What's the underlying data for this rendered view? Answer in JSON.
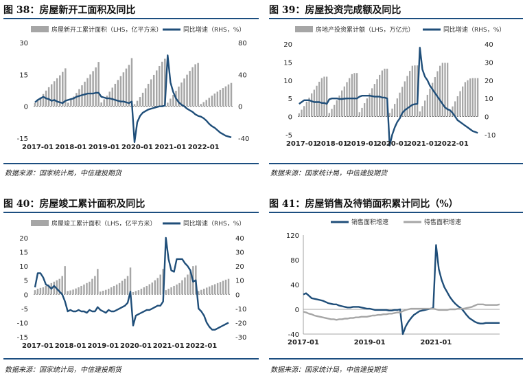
{
  "source_note": "数据来源：国家统计局，中信建投期货",
  "charts": [
    {
      "id": "fig38",
      "title": "图 38：房屋新开工面积及同比",
      "chart_data": {
        "type": "bar+line",
        "legend": [
          "房屋新开工累计面积（LHS，亿平方米）",
          "同比增速（RHS，%）"
        ],
        "x_ticks": [
          "2017-01",
          "2018-01",
          "2019-01",
          "2020-01",
          "2021-01",
          "2022-01"
        ],
        "y_left_ticks": [
          "30",
          "15",
          "0",
          "-15"
        ],
        "y_right_ticks": [
          "80",
          "40",
          "0",
          "-40"
        ],
        "ylim_left": [
          -15,
          30
        ],
        "ylim_right": [
          -40,
          80
        ],
        "bar_series": {
          "name": "房屋新开工累计面积（LHS，亿平方米）",
          "values": [
            1.6,
            2.8,
            4.2,
            5.8,
            7.4,
            9.0,
            10.4,
            11.8,
            13.2,
            14.6,
            16.2,
            17.9,
            1.7,
            3.0,
            4.6,
            6.3,
            8.1,
            9.9,
            11.6,
            13.3,
            15.0,
            16.6,
            18.3,
            20.9,
            1.8,
            3.3,
            5.0,
            6.9,
            8.8,
            10.6,
            12.4,
            14.2,
            16.0,
            17.8,
            19.5,
            22.7,
            1.0,
            2.6,
            4.4,
            6.4,
            8.5,
            10.6,
            12.7,
            14.8,
            16.9,
            19.0,
            21.0,
            22.4,
            1.7,
            3.6,
            5.4,
            7.3,
            9.3,
            11.2,
            13.1,
            14.9,
            16.7,
            18.4,
            19.8,
            20.4,
            1.1,
            2.0,
            3.0,
            4.0,
            5.0,
            6.0,
            6.9,
            7.7,
            8.6,
            9.4,
            10.3,
            11.0
          ],
          "color": "#a6a6a6"
        },
        "line_series": {
          "name": "同比增速（RHS，%）",
          "values": [
            5,
            8,
            10,
            12,
            10,
            9,
            7,
            8,
            6,
            5,
            4,
            7,
            8,
            9,
            10,
            12,
            13,
            14,
            15,
            16,
            16,
            16,
            17,
            17,
            12,
            11,
            10,
            10,
            9,
            8,
            7,
            6,
            6,
            5,
            4,
            6,
            -45,
            -20,
            -12,
            -8,
            -6,
            -4,
            -3,
            -2,
            -1,
            0,
            0,
            1,
            64,
            30,
            18,
            10,
            5,
            2,
            0,
            -3,
            -5,
            -7,
            -10,
            -12,
            -13,
            -15,
            -18,
            -22,
            -25,
            -27,
            -30,
            -33,
            -35,
            -37,
            -38,
            -39
          ],
          "color": "#1f4e79"
        }
      }
    },
    {
      "id": "fig39",
      "title": "图 39：房屋投资完成额及同比",
      "chart_data": {
        "type": "bar+line",
        "legend": [
          "房地产投资累计额（LHS，万亿元）",
          "同比增速（RHS，%）"
        ],
        "x_ticks": [
          "2017-01",
          "2018-01",
          "2019-01",
          "2020-01",
          "2021-01",
          "2022-01"
        ],
        "y_left_ticks": [
          "20",
          "15",
          "10",
          "5",
          "0",
          "-5"
        ],
        "y_right_ticks": [
          "40",
          "30",
          "20",
          "10",
          "0",
          "-10"
        ],
        "ylim_left": [
          -5,
          20
        ],
        "ylim_right": [
          -10,
          40
        ],
        "bar_series": {
          "name": "房地产投资累计额（LHS，万亿元）",
          "values": [
            0.9,
            1.9,
            2.9,
            4.1,
            5.2,
            6.4,
            7.4,
            8.5,
            9.6,
            10.6,
            11.0,
            11.0,
            1.0,
            2.1,
            3.2,
            4.5,
            5.8,
            7.2,
            8.3,
            9.5,
            10.6,
            11.7,
            12.0,
            12.0,
            1.2,
            2.4,
            3.7,
            5.0,
            6.4,
            7.8,
            9.0,
            10.3,
            11.5,
            12.7,
            13.2,
            13.2,
            1.0,
            2.2,
            3.5,
            5.0,
            6.6,
            8.2,
            9.7,
            11.2,
            12.6,
            14.0,
            14.1,
            14.1,
            1.4,
            2.9,
            4.4,
            6.0,
            7.7,
            9.3,
            10.9,
            12.5,
            14.0,
            14.8,
            14.8,
            14.8,
            1.5,
            2.8,
            4.2,
            5.6,
            7.0,
            8.3,
            9.5,
            10.0,
            10.5,
            10.6,
            10.6,
            10.6
          ],
          "color": "#a6a6a6"
        },
        "line_series": {
          "name": "同比增速（RHS，%）",
          "values": [
            7,
            8,
            9,
            9,
            9,
            8.5,
            8,
            8,
            8,
            7.5,
            7.5,
            7,
            9.5,
            10,
            10,
            10,
            9.7,
            9.7,
            9.9,
            10,
            10,
            10,
            10,
            10,
            11,
            11.5,
            11.5,
            11.5,
            11.5,
            11.3,
            11,
            11,
            11,
            10.5,
            10.5,
            10,
            -16,
            -10,
            -6,
            -3,
            -1,
            2,
            3.5,
            4.5,
            5.5,
            6.5,
            6.8,
            7,
            38,
            26,
            22,
            20,
            17,
            15,
            13,
            11,
            9,
            7,
            5,
            4,
            3.5,
            2,
            0,
            -2,
            -3,
            -4,
            -5,
            -6,
            -7,
            -8,
            -8.5,
            -9
          ],
          "color": "#1f4e79"
        }
      }
    },
    {
      "id": "fig40",
      "title": "图 40：房屋竣工累计面积及同比",
      "chart_data": {
        "type": "bar+line",
        "legend": [
          "房屋竣工累计面积（LHS，亿平方米）",
          "同比增速（RHS，%）"
        ],
        "x_ticks": [
          "2017-01",
          "2018-01",
          "2019-01",
          "2020-01",
          "2021-01",
          "2022-01"
        ],
        "y_left_ticks": [
          "20",
          "15",
          "10",
          "5",
          "0",
          "-5",
          "-10",
          "-15"
        ],
        "y_right_ticks": [
          "40",
          "30",
          "20",
          "10",
          "0",
          "-10",
          "-20",
          "-30"
        ],
        "ylim_left": [
          -15,
          20
        ],
        "ylim_right": [
          -30,
          40
        ],
        "bar_series": {
          "name": "房屋竣工累计面积（LHS，亿平方米）",
          "values": [
            1.5,
            2.0,
            2.3,
            2.5,
            3.0,
            3.5,
            4.0,
            4.5,
            5.0,
            5.5,
            6.5,
            10.0,
            1.2,
            1.4,
            1.7,
            2.1,
            2.5,
            3.0,
            3.5,
            4.0,
            4.5,
            5.5,
            6.5,
            9.0,
            1.0,
            1.3,
            1.6,
            2.0,
            2.5,
            3.0,
            3.5,
            4.0,
            4.8,
            5.5,
            6.5,
            9.5,
            0.8,
            1.2,
            1.5,
            2.0,
            2.5,
            3.0,
            3.6,
            4.2,
            5.0,
            5.8,
            7.0,
            9.0,
            1.5,
            2.0,
            2.5,
            3.0,
            3.5,
            4.0,
            5.0,
            6.0,
            7.0,
            8.0,
            10.0,
            10.2,
            1.2,
            1.6,
            2.0,
            2.4,
            2.8,
            3.2,
            3.6,
            4.0,
            4.4,
            4.8,
            5.2,
            5.5
          ],
          "color": "#a6a6a6"
        },
        "line_series": {
          "name": "同比增速（RHS，%）",
          "values": [
            5,
            15,
            15,
            12,
            7,
            6,
            4,
            6,
            4,
            2,
            0,
            -5,
            -12,
            -11,
            -12,
            -12,
            -11,
            -12,
            -12,
            -13,
            -11,
            -12,
            -12,
            -9,
            -11,
            -12,
            -13,
            -11,
            -12,
            -12,
            -11,
            -10,
            -9,
            -8,
            -6,
            2,
            -22,
            -15,
            -14,
            -13,
            -12,
            -11,
            -11,
            -10,
            -9,
            -8,
            -8,
            -5,
            40,
            25,
            17,
            16,
            25,
            25,
            25,
            22,
            20,
            17,
            9,
            10,
            -10,
            -12,
            -15,
            -20,
            -23,
            -25,
            -25,
            -24,
            -23,
            -22,
            -21,
            -20
          ],
          "color": "#1f4e79"
        }
      }
    },
    {
      "id": "fig41",
      "title": "图 41：房屋销售及待销面积累计同比（%）",
      "chart_data": {
        "type": "line",
        "legend": [
          "销售面积增速",
          "待售面积增速"
        ],
        "x_ticks": [
          "2017-01",
          "2019-01",
          "2021-01"
        ],
        "y_ticks": [
          "120",
          "80",
          "40",
          "0",
          "-40"
        ],
        "ylim": [
          -40,
          120
        ],
        "series": [
          {
            "name": "销售面积增速",
            "color": "#1f4e79",
            "values": [
              24,
              26,
              22,
              18,
              17,
              16,
              15,
              14,
              12,
              10,
              9,
              8,
              8,
              6,
              5,
              4,
              3,
              3,
              4,
              4,
              4,
              3,
              2,
              1,
              1,
              0,
              -1,
              -1,
              -1,
              -1,
              -1,
              -2,
              -2,
              -1,
              -1,
              0,
              -40,
              -28,
              -20,
              -14,
              -9,
              -6,
              -3,
              -2,
              -1,
              0,
              1,
              2,
              104,
              65,
              48,
              36,
              28,
              20,
              14,
              9,
              5,
              2,
              -3,
              -9,
              -14,
              -17,
              -20,
              -22,
              -23,
              -23,
              -22,
              -22,
              -22,
              -22,
              -22,
              -22
            ]
          },
          {
            "name": "待售面积增速",
            "color": "#a6a6a6",
            "values": [
              -4,
              -5,
              -7,
              -8,
              -10,
              -11,
              -12,
              -13,
              -14,
              -15,
              -16,
              -16,
              -17,
              -16,
              -16,
              -15,
              -15,
              -14,
              -14,
              -13,
              -13,
              -12,
              -12,
              -12,
              -11,
              -10,
              -10,
              -9,
              -9,
              -8,
              -8,
              -7,
              -7,
              -6,
              -5,
              -5,
              -3,
              -1,
              0,
              1,
              1,
              1,
              1,
              1,
              1,
              1,
              1,
              1,
              0,
              -1,
              -1,
              -1,
              -1,
              0,
              0,
              0,
              1,
              1,
              1,
              2,
              3,
              4,
              6,
              8,
              8,
              8,
              7,
              7,
              7,
              7,
              7,
              8
            ]
          }
        ]
      }
    }
  ]
}
